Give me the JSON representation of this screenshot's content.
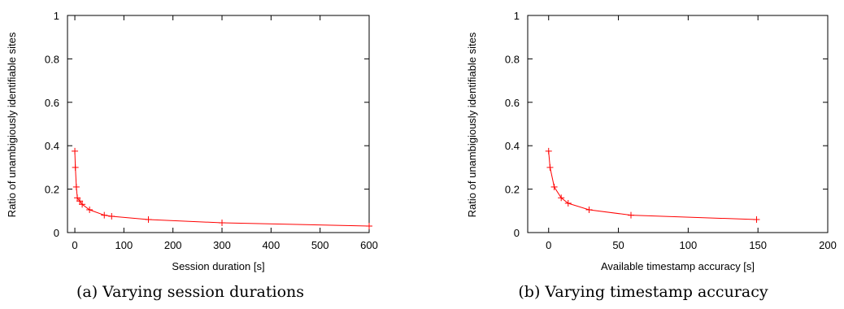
{
  "chart_data": [
    {
      "type": "line",
      "caption": "(a) Varying session durations",
      "xlabel": "Session duration [s]",
      "ylabel": "Ratio of unambigiously identifiable sites",
      "xlim": [
        -15,
        600
      ],
      "ylim": [
        0,
        1
      ],
      "xticks": [
        0,
        100,
        200,
        300,
        400,
        500,
        600
      ],
      "yticks": [
        0,
        0.2,
        0.4,
        0.6,
        0.8,
        1
      ],
      "ytick_labels": [
        "0",
        "0.2",
        "0.4",
        "0.6",
        "0.8",
        "1"
      ],
      "grid": false,
      "color": "#ff0000",
      "series": [
        {
          "x": [
            0,
            1,
            3,
            5,
            10,
            15,
            30,
            60,
            75,
            150,
            300,
            600
          ],
          "y": [
            0.375,
            0.3,
            0.21,
            0.16,
            0.145,
            0.13,
            0.105,
            0.08,
            0.075,
            0.06,
            0.045,
            0.03
          ]
        }
      ]
    },
    {
      "type": "line",
      "caption": "(b) Varying timestamp accuracy",
      "xlabel": "Available timestamp accuracy [s]",
      "ylabel": "Ratio of unambigiously identifiable sites",
      "xlim": [
        -15,
        200
      ],
      "ylim": [
        0,
        1
      ],
      "xticks": [
        0,
        50,
        100,
        150,
        200
      ],
      "yticks": [
        0,
        0.2,
        0.4,
        0.6,
        0.8,
        1
      ],
      "ytick_labels": [
        "0",
        "0.2",
        "0.4",
        "0.6",
        "0.8",
        "1"
      ],
      "grid": false,
      "color": "#ff0000",
      "series": [
        {
          "x": [
            0,
            1,
            4,
            9,
            14,
            29,
            59,
            149
          ],
          "y": [
            0.375,
            0.3,
            0.21,
            0.16,
            0.135,
            0.105,
            0.08,
            0.06
          ]
        }
      ]
    }
  ]
}
